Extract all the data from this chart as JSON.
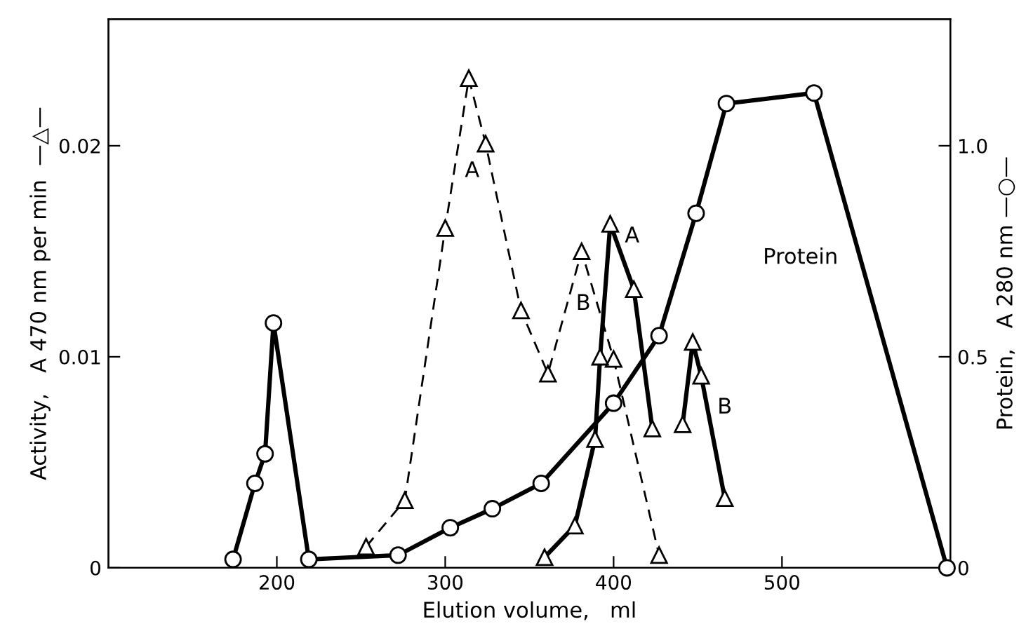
{
  "chart_data": {
    "type": "line",
    "xlabel": "Elution volume,   ml",
    "ylabel": "Activity,   A 470 nm per min  —△—",
    "y2label": "Protein,   A 280 nm —○—",
    "xlim": [
      100,
      600
    ],
    "xticks": [
      200,
      300,
      400,
      500
    ],
    "ylim": [
      0,
      0.026
    ],
    "yticks": [
      0,
      0.01,
      0.02
    ],
    "y2lim": [
      0,
      1.3
    ],
    "y2ticks": [
      0,
      0.5,
      {
        "value": 1,
        "label": "1.0"
      }
    ],
    "grid": false,
    "legend": false,
    "series": [
      {
        "color": "#000000",
        "line_style": "dashed",
        "marker": "triangle",
        "x": [
          253,
          276,
          300,
          314,
          324,
          345,
          361,
          381,
          400,
          427
        ],
        "values": [
          0.001,
          0.0032,
          0.0161,
          0.0232,
          0.0201,
          0.0122,
          0.0092,
          0.015,
          0.0099,
          0.0006
        ]
      },
      {
        "color": "#000000",
        "line_style": "solid",
        "marker": "triangle",
        "x": [
          359,
          377,
          389,
          392,
          398,
          412,
          423,
          null,
          441,
          447,
          452,
          466
        ],
        "values": [
          0.0005,
          0.002,
          0.0061,
          0.01,
          0.0163,
          0.0132,
          0.0066,
          null,
          0.0068,
          0.0107,
          0.0091,
          0.0033
        ]
      },
      {
        "color": "#000000",
        "line_style": "solid",
        "marker": "circle",
        "axis": "y2",
        "x": [
          174,
          187,
          193,
          198,
          219,
          272,
          303,
          328,
          357,
          400,
          427,
          449,
          467,
          519,
          598
        ],
        "values": [
          0.02,
          0.2,
          0.27,
          0.58,
          0.02,
          0.03,
          0.095,
          0.14,
          0.2,
          0.39,
          0.55,
          0.84,
          1.1,
          1.125,
          0
        ]
      }
    ],
    "annotations": [
      "A",
      "B",
      "A",
      "B",
      "Protein"
    ]
  }
}
